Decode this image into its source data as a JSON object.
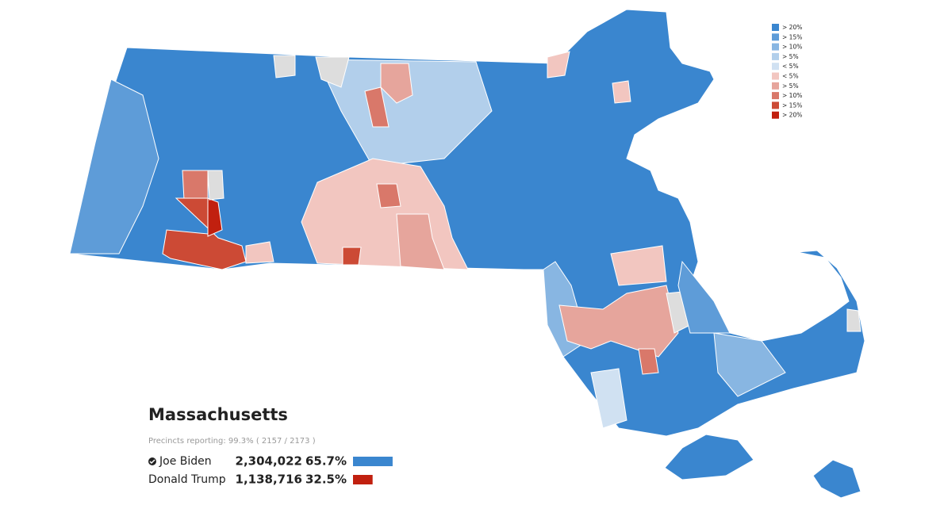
{
  "map": {
    "legend": [
      {
        "label": "> 20%",
        "color": "#3a86cf"
      },
      {
        "label": "> 15%",
        "color": "#5e9cd8"
      },
      {
        "label": "> 10%",
        "color": "#88b6e2"
      },
      {
        "label": "> 5%",
        "color": "#b2cfeb"
      },
      {
        "label": "< 5%",
        "color": "#d0e1f2"
      },
      {
        "label": "< 5%",
        "color": "#f2c6c0"
      },
      {
        "label": "> 5%",
        "color": "#e6a59c"
      },
      {
        "label": "> 10%",
        "color": "#d9786a"
      },
      {
        "label": "> 15%",
        "color": "#cc4a35"
      },
      {
        "label": "> 20%",
        "color": "#c1200f"
      }
    ]
  },
  "summary": {
    "title": "Massachusetts",
    "precincts": "Precincts reporting: 99.3% ( 2157 / 2173 )",
    "candidates": [
      {
        "name": "Joe Biden",
        "winner": true,
        "votes": {
          "value": 2304022,
          "label": "2,304,022"
        },
        "percent": {
          "value": 65.7,
          "label": "65.7%"
        },
        "color": "#3a86cf"
      },
      {
        "name": "Donald Trump",
        "winner": false,
        "votes": {
          "value": 1138716,
          "label": "1,138,716"
        },
        "percent": {
          "value": 32.5,
          "label": "32.5%"
        },
        "color": "#c1200f"
      }
    ]
  }
}
